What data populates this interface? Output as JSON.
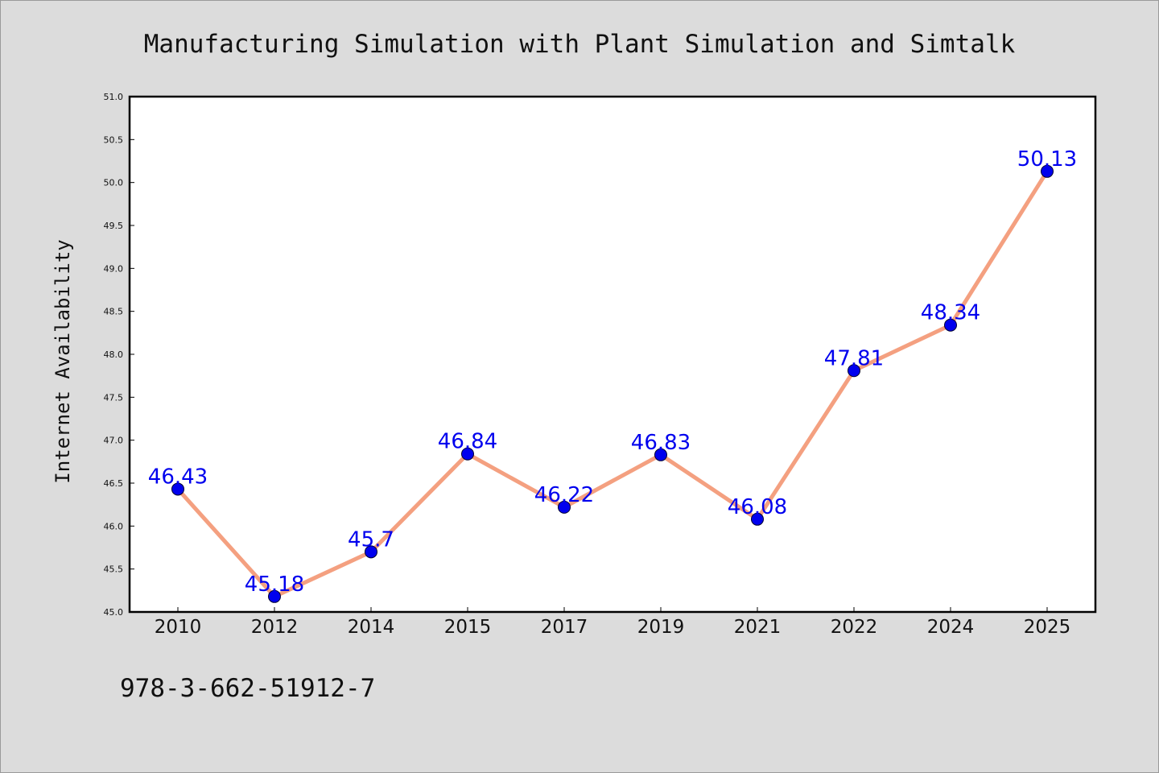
{
  "chart_data": {
    "type": "line",
    "title": "Manufacturing Simulation with Plant Simulation and Simtalk",
    "xlabel": "",
    "ylabel": "Internet Availability",
    "categories": [
      "2010",
      "2012",
      "2014",
      "2015",
      "2017",
      "2019",
      "2021",
      "2022",
      "2024",
      "2025"
    ],
    "values": [
      46.43,
      45.18,
      45.7,
      46.84,
      46.22,
      46.83,
      46.08,
      47.81,
      48.34,
      50.13
    ],
    "data_labels": [
      "46.43",
      "45.18",
      "45.7",
      "46.84",
      "46.22",
      "46.83",
      "46.08",
      "47.81",
      "48.34",
      "50.13"
    ],
    "ylim": [
      45.0,
      51.0
    ],
    "yticks": [
      "45.0",
      "45.5",
      "46.0",
      "46.5",
      "47.0",
      "47.5",
      "48.0",
      "48.5",
      "49.0",
      "49.5",
      "50.0",
      "50.5",
      "51.0"
    ],
    "grid": false,
    "line_color": "#f4a080",
    "marker_color": "#0000ee",
    "label_color": "#0000ee"
  },
  "footer": {
    "isbn": "978-3-662-51912-7"
  }
}
